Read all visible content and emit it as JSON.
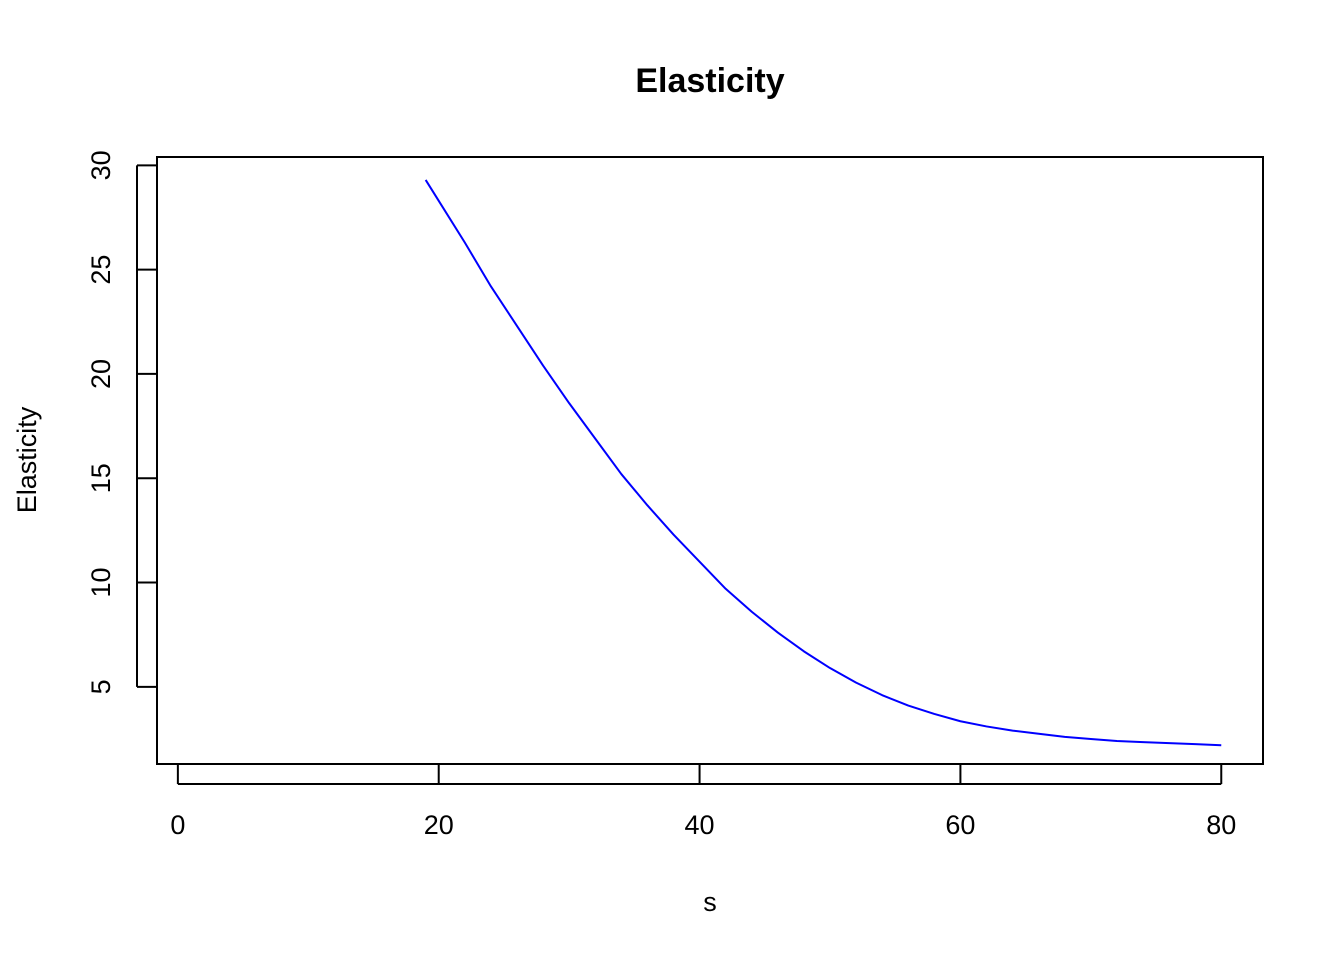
{
  "chart_data": {
    "type": "line",
    "title": "Elasticity",
    "xlabel": "s",
    "ylabel": "Elasticity",
    "xlim": [
      -1.6,
      83.2
    ],
    "ylim": [
      1.3,
      30.4
    ],
    "x_ticks": [
      0,
      20,
      40,
      60,
      80
    ],
    "x_tick_labels": [
      "0",
      "20",
      "40",
      "60",
      "80"
    ],
    "y_ticks": [
      5,
      10,
      15,
      20,
      25,
      30
    ],
    "y_tick_labels": [
      "5",
      "10",
      "15",
      "20",
      "25",
      "30"
    ],
    "grid": false,
    "box": true,
    "series": [
      {
        "color": "#0000ff",
        "x": [
          19,
          20,
          22,
          24,
          26,
          28,
          30,
          32,
          34,
          36,
          38,
          40,
          42,
          44,
          46,
          48,
          50,
          52,
          54,
          56,
          58,
          60,
          62,
          64,
          66,
          68,
          70,
          72,
          74,
          76,
          78,
          80
        ],
        "y": [
          29.3,
          28.3,
          26.3,
          24.2,
          22.3,
          20.4,
          18.6,
          16.9,
          15.2,
          13.7,
          12.3,
          11.0,
          9.7,
          8.6,
          7.6,
          6.7,
          5.9,
          5.2,
          4.6,
          4.1,
          3.7,
          3.35,
          3.1,
          2.9,
          2.75,
          2.6,
          2.5,
          2.4,
          2.35,
          2.3,
          2.25,
          2.2
        ]
      }
    ]
  }
}
